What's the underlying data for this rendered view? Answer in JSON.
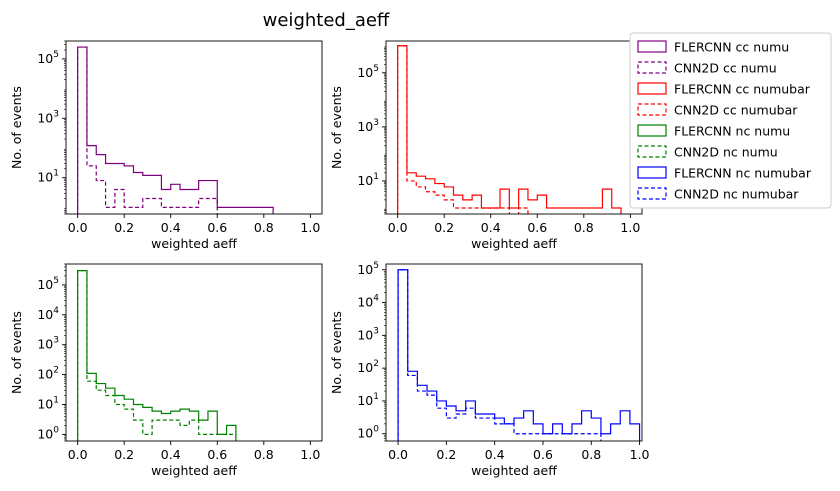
{
  "chart_data": {
    "type": "histogram",
    "title": "weighted_aeff",
    "bin_width": 0.04,
    "legend_placement": "right",
    "legend": [
      {
        "key": "ccnumu_flercnn",
        "label": "FLERCNN cc numu",
        "color": "#800080",
        "dashed": false
      },
      {
        "key": "ccnumu_cnn2d",
        "label": "CNN2D cc numu",
        "color": "#800080",
        "dashed": true
      },
      {
        "key": "ccnumubar_flercnn",
        "label": "FLERCNN cc numubar",
        "color": "#ff0000",
        "dashed": false
      },
      {
        "key": "ccnumubar_cnn2d",
        "label": "CNN2D cc numubar",
        "color": "#ff0000",
        "dashed": true
      },
      {
        "key": "ncnumu_flercnn",
        "label": "FLERCNN nc numu",
        "color": "#008000",
        "dashed": false
      },
      {
        "key": "ncnumu_cnn2d",
        "label": "CNN2D nc numu",
        "color": "#008000",
        "dashed": true
      },
      {
        "key": "ncnumubar_flercnn",
        "label": "FLERCNN nc numubar",
        "color": "#0000ff",
        "dashed": false
      },
      {
        "key": "ncnumubar_cnn2d",
        "label": "CNN2D nc numubar",
        "color": "#0000ff",
        "dashed": true
      }
    ],
    "panels": [
      {
        "id": "cc-numu",
        "xlabel": "weighted aeff",
        "ylabel": "No. of events",
        "xlim": [
          -0.05,
          1.05
        ],
        "ylim": [
          0.6,
          400000
        ],
        "xticks": [
          0.0,
          0.2,
          0.4,
          0.6,
          0.8,
          1.0
        ],
        "xtick_labels": [
          "0.0",
          "0.2",
          "0.4",
          "0.6",
          "0.8",
          "1.0"
        ],
        "yticks": [
          10,
          1000,
          100000
        ],
        "ytick_labels": [
          "10^1",
          "10^3",
          "10^5"
        ],
        "color": "#800080",
        "series": [
          {
            "name": "FLERCNN cc numu",
            "dashed": false,
            "bin_start": 0.0,
            "values": [
              250000,
              120,
              60,
              30,
              30,
              25,
              15,
              12,
              12,
              4,
              6,
              4,
              4,
              8,
              8,
              1,
              1,
              1,
              1,
              1,
              1
            ]
          },
          {
            "name": "CNN2D cc numu",
            "dashed": true,
            "bin_start": 0.0,
            "values": [
              250000,
              25,
              8,
              1,
              4,
              1,
              1,
              2,
              2,
              1,
              1,
              1,
              1,
              2,
              2,
              0,
              0,
              0,
              0,
              0,
              0
            ]
          }
        ]
      },
      {
        "id": "cc-numubar",
        "xlabel": "weighted aeff",
        "ylabel": "No. of events",
        "xlim": [
          -0.05,
          1.05
        ],
        "ylim": [
          0.6,
          1500000
        ],
        "xticks": [
          0.0,
          0.2,
          0.4,
          0.6,
          0.8,
          1.0
        ],
        "xtick_labels": [
          "0.0",
          "0.2",
          "0.4",
          "0.6",
          "0.8",
          "1.0"
        ],
        "yticks": [
          10,
          1000,
          100000
        ],
        "ytick_labels": [
          "10^1",
          "10^3",
          "10^5"
        ],
        "color": "#ff0000",
        "series": [
          {
            "name": "FLERCNN cc numubar",
            "dashed": false,
            "bin_start": 0.0,
            "values": [
              1000000,
              20,
              15,
              12,
              8,
              6,
              3,
              2,
              3,
              1,
              1,
              5,
              1,
              5,
              2,
              3,
              1,
              1,
              1,
              1,
              1,
              1,
              5,
              1
            ]
          },
          {
            "name": "CNN2D cc numubar",
            "dashed": true,
            "bin_start": 0.0,
            "values": [
              1000000,
              10,
              6,
              4,
              3,
              2,
              1,
              1,
              1,
              1,
              1,
              1,
              0,
              1,
              0,
              0,
              0,
              0,
              0,
              0,
              0,
              0,
              0,
              0
            ]
          }
        ]
      },
      {
        "id": "nc-numu",
        "xlabel": "weighted aeff",
        "ylabel": "No. of events",
        "xlim": [
          -0.05,
          1.05
        ],
        "ylim": [
          0.6,
          500000
        ],
        "xticks": [
          0.0,
          0.2,
          0.4,
          0.6,
          0.8,
          1.0
        ],
        "xtick_labels": [
          "0.0",
          "0.2",
          "0.4",
          "0.6",
          "0.8",
          "1.0"
        ],
        "yticks": [
          1,
          10,
          100,
          1000,
          10000,
          100000
        ],
        "ytick_labels": [
          "10^0",
          "10^1",
          "10^2",
          "10^3",
          "10^4",
          "10^5"
        ],
        "color": "#008000",
        "series": [
          {
            "name": "FLERCNN nc numu",
            "dashed": false,
            "bin_start": 0.0,
            "values": [
              300000,
              110,
              50,
              35,
              20,
              15,
              10,
              8,
              6,
              5,
              6,
              7,
              6,
              3,
              6,
              1,
              2
            ]
          },
          {
            "name": "CNN2D nc numu",
            "dashed": true,
            "bin_start": 0.0,
            "values": [
              300000,
              60,
              30,
              20,
              10,
              7,
              3,
              1,
              3,
              3,
              3,
              2,
              3,
              1,
              1,
              1,
              1
            ]
          }
        ]
      },
      {
        "id": "nc-numubar",
        "xlabel": "weighted aeff",
        "ylabel": "No. of events",
        "xlim": [
          -0.05,
          1.01
        ],
        "ylim": [
          0.6,
          150000
        ],
        "xticks": [
          0.0,
          0.2,
          0.4,
          0.6,
          0.8,
          1.0
        ],
        "xtick_labels": [
          "0.0",
          "0.2",
          "0.4",
          "0.6",
          "0.8",
          "1.0"
        ],
        "yticks": [
          1,
          10,
          100,
          1000,
          10000,
          100000
        ],
        "ytick_labels": [
          "10^0",
          "10^1",
          "10^2",
          "10^3",
          "10^4",
          "10^5"
        ],
        "color": "#0000ff",
        "series": [
          {
            "name": "FLERCNN nc numubar",
            "dashed": false,
            "bin_start": 0.0,
            "values": [
              100000,
              80,
              30,
              20,
              10,
              7,
              5,
              10,
              4,
              4,
              3,
              2,
              3,
              5,
              2,
              1,
              2,
              1,
              2,
              5,
              3,
              1,
              2,
              5,
              2
            ]
          },
          {
            "name": "CNN2D nc numubar",
            "dashed": true,
            "bin_start": 0.0,
            "values": [
              100000,
              60,
              20,
              15,
              6,
              3,
              4,
              6,
              3,
              3,
              2,
              2,
              1,
              1,
              1,
              1,
              1,
              1,
              1,
              1,
              1,
              0,
              0,
              0,
              0
            ]
          }
        ]
      }
    ]
  }
}
